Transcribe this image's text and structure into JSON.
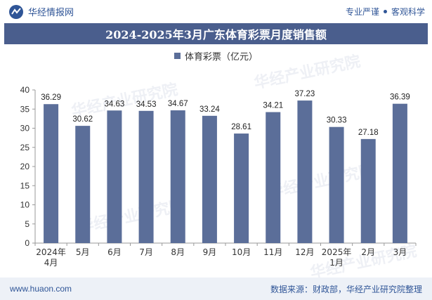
{
  "header": {
    "brand": "华经情报网",
    "tagline_left": "专业严谨",
    "tagline_right": "客观科学"
  },
  "title": "2024-2025年3月广东体育彩票月度销售额",
  "watermark": "华经产业研究院",
  "footer": {
    "url": "www.huaon.com",
    "source": "数据来源：财政部，华经产业研究院整理"
  },
  "colors": {
    "bar": "#5b6e99",
    "title_bg": "#4a5e8d",
    "footer_bg": "#edf1f7",
    "accent": "#2f5597"
  },
  "chart_data": {
    "type": "bar",
    "categories": [
      "2024年4月",
      "5月",
      "6月",
      "7月",
      "8月",
      "9月",
      "10月",
      "11月",
      "12月",
      "2025年1月",
      "2月",
      "3月"
    ],
    "series": [
      {
        "name": "体育彩票（亿元）",
        "values": [
          36.29,
          30.62,
          34.63,
          34.53,
          34.67,
          33.24,
          28.61,
          34.21,
          37.23,
          30.33,
          27.18,
          36.39
        ]
      }
    ],
    "ylim": [
      0,
      40
    ],
    "yticks": [
      0,
      5,
      10,
      15,
      20,
      25,
      30,
      35,
      40
    ],
    "grid": false,
    "legend_position": "top-center",
    "data_labels": true
  }
}
